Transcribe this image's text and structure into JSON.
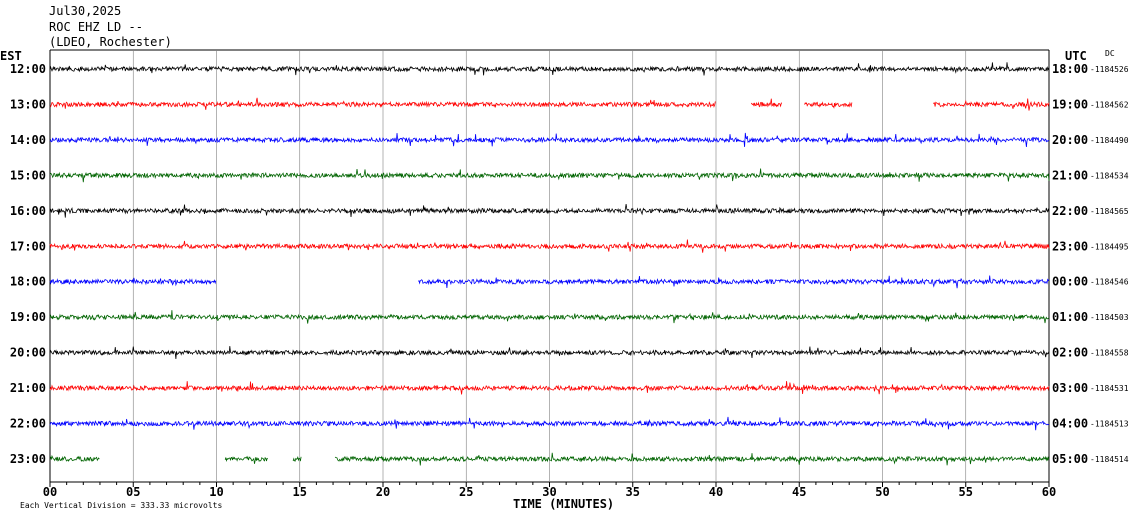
{
  "header": {
    "date": "Jul30,2025",
    "station": "ROC EHZ LD --",
    "network": "(LDEO, Rochester)"
  },
  "labels": {
    "left_tz": "EST",
    "right_tz": "UTC",
    "dc": "DC",
    "xlabel": "TIME (MINUTES)",
    "footer": "Each Vertical Division = 333.33 microvolts"
  },
  "colors": {
    "trace_cycle": [
      "#000000",
      "#ff0000",
      "#0000ff",
      "#006400"
    ],
    "grid": "#808080"
  },
  "chart_data": {
    "type": "line",
    "title": "",
    "xlabel": "TIME (MINUTES)",
    "xlim": [
      0,
      60
    ],
    "x_ticks": [
      "00",
      "05",
      "10",
      "15",
      "20",
      "25",
      "30",
      "35",
      "40",
      "45",
      "50",
      "55",
      "60"
    ],
    "rows": [
      {
        "est": "12:00",
        "utc": "18:00",
        "dc": "-1184526",
        "color": "#000000",
        "gaps": []
      },
      {
        "est": "13:00",
        "utc": "19:00",
        "dc": "-1184562",
        "color": "#ff0000",
        "gaps": [
          [
            40.0,
            42.1
          ],
          [
            44.0,
            45.3
          ],
          [
            48.2,
            53.0
          ]
        ]
      },
      {
        "est": "14:00",
        "utc": "20:00",
        "dc": "-1184490",
        "color": "#0000ff",
        "gaps": []
      },
      {
        "est": "15:00",
        "utc": "21:00",
        "dc": "-1184534",
        "color": "#006400",
        "gaps": []
      },
      {
        "est": "16:00",
        "utc": "22:00",
        "dc": "-1184565",
        "color": "#000000",
        "gaps": []
      },
      {
        "est": "17:00",
        "utc": "23:00",
        "dc": "-1184495",
        "color": "#ff0000",
        "gaps": []
      },
      {
        "est": "18:00",
        "utc": "00:00",
        "dc": "-1184546",
        "color": "#0000ff",
        "gaps": [
          [
            10.0,
            22.1
          ]
        ]
      },
      {
        "est": "19:00",
        "utc": "01:00",
        "dc": "-1184503",
        "color": "#006400",
        "gaps": []
      },
      {
        "est": "20:00",
        "utc": "02:00",
        "dc": "-1184558",
        "color": "#000000",
        "gaps": []
      },
      {
        "est": "21:00",
        "utc": "03:00",
        "dc": "-1184531",
        "color": "#ff0000",
        "gaps": []
      },
      {
        "est": "22:00",
        "utc": "04:00",
        "dc": "-1184513",
        "color": "#0000ff",
        "gaps": []
      },
      {
        "est": "23:00",
        "utc": "05:00",
        "dc": "-1184514",
        "color": "#006400",
        "gaps": [
          [
            3.0,
            10.5
          ],
          [
            13.1,
            14.6
          ],
          [
            15.1,
            17.1
          ]
        ]
      }
    ]
  }
}
